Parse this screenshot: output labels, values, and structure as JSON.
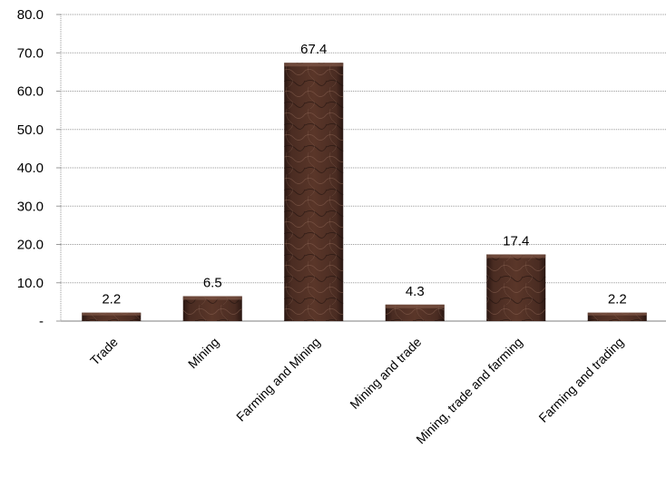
{
  "chart_data": {
    "type": "bar",
    "categories": [
      "Trade",
      "Mining",
      "Farming and Mining",
      "Mining and trade",
      "Mining, trade and farming",
      "Farming and trading"
    ],
    "values": [
      2.2,
      6.5,
      67.4,
      4.3,
      17.4,
      2.2
    ],
    "value_labels": [
      "2.2",
      "6.5",
      "67.4",
      "4.3",
      "17.4",
      "2.2"
    ],
    "ylim": [
      0,
      80
    ],
    "yticks": [
      0,
      10,
      20,
      30,
      40,
      50,
      60,
      70,
      80
    ],
    "ytick_labels": [
      "-",
      "10.0",
      "20.0",
      "30.0",
      "40.0",
      "50.0",
      "60.0",
      "70.0",
      "80.0"
    ],
    "grid": true,
    "legend": "none",
    "colors": {
      "bar_fill": "#4a2c22",
      "bar_highlight": "#7d5646",
      "bar_shadow": "#2a1712",
      "grid": "#9a9a9a"
    }
  }
}
